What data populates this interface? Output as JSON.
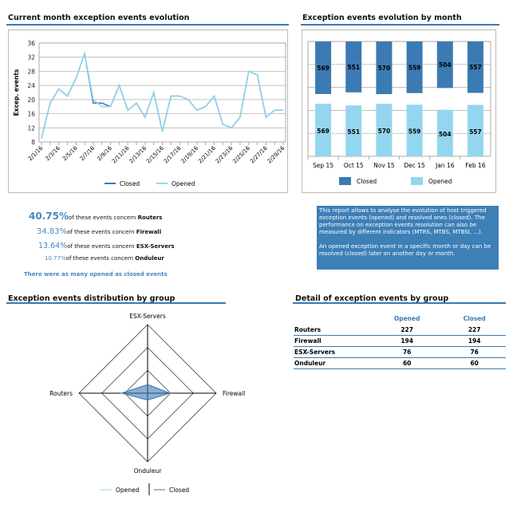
{
  "sections": {
    "daily_title": "Current month exception events evolution",
    "monthly_title": "Exception events evolution by month",
    "radar_title": "Exception events distribution by group",
    "detail_title": "Detail of exception events by group"
  },
  "stats": [
    {
      "pct": "40.75%",
      "text": "of these events concern ",
      "group": "Routers"
    },
    {
      "pct": "34.83%",
      "text": "of these events concern ",
      "group": "Firewall"
    },
    {
      "pct": "13.64%",
      "text": "of these events concern ",
      "group": "ESX-Servers"
    },
    {
      "pct": "10.77%",
      "text": "of these events concern ",
      "group": "Onduleur"
    }
  ],
  "summary": "There were as many opened as closed events",
  "info": {
    "p1": "This report allows to analyse the evolution of host triggered exception events (opened) and resolved ones (closed). The performance on exception events resolution can also be measured by different indicators (MTRS, MTBS, MTBSI, ...).",
    "p2": "An opened exception event in a specific month or day can be resolved (closed) later on another day or month."
  },
  "detail_table": {
    "headers": [
      "",
      "Opened",
      "Closed"
    ],
    "rows": [
      {
        "group": "Routers",
        "opened": "227",
        "closed": "227"
      },
      {
        "group": "Firewall",
        "opened": "194",
        "closed": "194"
      },
      {
        "group": "ESX-Servers",
        "opened": "76",
        "closed": "76"
      },
      {
        "group": "Onduleur",
        "opened": "60",
        "closed": "60"
      }
    ]
  },
  "colors": {
    "closed": "#3b7ab2",
    "opened": "#94d6ef",
    "accent": "#3b7ab2"
  },
  "chart_data": [
    {
      "type": "line",
      "ylabel": "Excep. events",
      "ylim": [
        8,
        36
      ],
      "yticks": [
        8,
        12,
        16,
        20,
        24,
        28,
        32,
        36
      ],
      "grid": true,
      "legend": "bottom",
      "x": [
        "2/1/16",
        "2/2/16",
        "2/3/16",
        "2/4/16",
        "2/5/16",
        "2/6/16",
        "2/7/16",
        "2/8/16",
        "2/9/16",
        "2/10/16",
        "2/11/16",
        "2/12/16",
        "2/13/16",
        "2/14/16",
        "2/15/16",
        "2/16/16",
        "2/17/16",
        "2/18/16",
        "2/19/16",
        "2/20/16",
        "2/21/16",
        "2/22/16",
        "2/23/16",
        "2/24/16",
        "2/25/16",
        "2/26/16",
        "2/27/16",
        "2/28/16",
        "2/29/16"
      ],
      "xtick_labels": [
        "2/1/16",
        "2/3/16",
        "2/5/16",
        "2/7/16",
        "2/9/16",
        "2/11/16",
        "2/13/16",
        "2/15/16",
        "2/17/16",
        "2/19/16",
        "2/21/16",
        "2/23/16",
        "2/25/16",
        "2/27/16",
        "2/29/16"
      ],
      "series": [
        {
          "name": "Closed",
          "values": [
            9,
            19,
            23,
            21,
            26,
            33,
            19,
            19,
            18,
            24,
            17,
            19,
            15,
            22,
            11,
            21,
            21,
            20,
            17,
            18,
            21,
            13,
            12,
            15,
            28,
            27,
            15,
            17,
            17
          ]
        },
        {
          "name": "Opened",
          "values": [
            9,
            19,
            23,
            21,
            26,
            33,
            20,
            18,
            18,
            24,
            17,
            19,
            15,
            22,
            11,
            21,
            21,
            20,
            17,
            18,
            21,
            13,
            12,
            15,
            28,
            27,
            15,
            17,
            17
          ]
        }
      ]
    },
    {
      "type": "bar",
      "categories": [
        "Sep 15",
        "Oct 15",
        "Nov 15",
        "Dec 15",
        "Jan 16",
        "Feb 16"
      ],
      "legend": "bottom",
      "grid": true,
      "series": [
        {
          "name": "Closed",
          "values": [
            569,
            551,
            570,
            559,
            504,
            557
          ]
        },
        {
          "name": "Opened",
          "values": [
            569,
            551,
            570,
            559,
            504,
            557
          ]
        }
      ]
    },
    {
      "type": "radar",
      "axes": [
        "ESX-Servers",
        "Firewall",
        "Onduleur",
        "Routers"
      ],
      "rmax": 600,
      "legend": "bottom",
      "series": [
        {
          "name": "Opened",
          "values": [
            76,
            194,
            60,
            227
          ]
        },
        {
          "name": "Closed",
          "values": [
            76,
            194,
            60,
            227
          ]
        }
      ]
    }
  ]
}
